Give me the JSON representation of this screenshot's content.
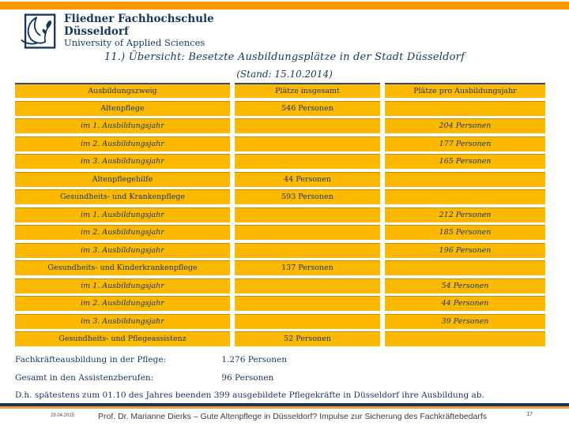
{
  "logo": {
    "line1": "Fliedner Fachhochschule",
    "line2": "Düsseldorf",
    "line3": "University of Applied Sciences"
  },
  "title": "11.) Übersicht: Besetzte Ausbildungsplätze in der Stadt Düsseldorf",
  "subtitle": "(Stand: 15.10.2014)",
  "colors": {
    "top_bar_orange": "#FF9900",
    "table_cell_orange": "#FCB900",
    "brand_navy": "#17365D",
    "footer_rule_orange": "#EFA32A"
  },
  "table": {
    "headers": [
      "Ausbildungszweig",
      "Plätze insgesamt",
      "Plätze pro Ausbildungsjahr"
    ],
    "rows": [
      {
        "zweig": "Altenpflege",
        "insgesamt": "546 Personen",
        "pro_jahr": "",
        "sub": false
      },
      {
        "zweig": "im 1. Ausbildungsjahr",
        "insgesamt": "",
        "pro_jahr": "204 Personen",
        "sub": true
      },
      {
        "zweig": "im 2. Ausbildungsjahr",
        "insgesamt": "",
        "pro_jahr": "177 Personen",
        "sub": true
      },
      {
        "zweig": "im 3. Ausbildungsjahr",
        "insgesamt": "",
        "pro_jahr": "165 Personen",
        "sub": true
      },
      {
        "zweig": "Altenpflegehilfe",
        "insgesamt": "44 Personen",
        "pro_jahr": "",
        "sub": false
      },
      {
        "zweig": "Gesundheits- und Krankenpflege",
        "insgesamt": "593 Personen",
        "pro_jahr": "",
        "sub": false
      },
      {
        "zweig": "im 1. Ausbildungsjahr",
        "insgesamt": "",
        "pro_jahr": "212 Personen",
        "sub": true
      },
      {
        "zweig": "im 2. Ausbildungsjahr",
        "insgesamt": "",
        "pro_jahr": "185 Personen",
        "sub": true
      },
      {
        "zweig": "im 3. Ausbildungsjahr",
        "insgesamt": "",
        "pro_jahr": "196 Personen",
        "sub": true
      },
      {
        "zweig": "Gesundheits- und Kinderkrankenpflege",
        "insgesamt": "137 Personen",
        "pro_jahr": "",
        "sub": false
      },
      {
        "zweig": "im 1. Ausbildungsjahr",
        "insgesamt": "",
        "pro_jahr": "54 Personen",
        "sub": true
      },
      {
        "zweig": "im 2. Ausbildungsjahr",
        "insgesamt": "",
        "pro_jahr": "44 Personen",
        "sub": true
      },
      {
        "zweig": "im 3. Ausbildungsjahr",
        "insgesamt": "",
        "pro_jahr": "39 Personen",
        "sub": true
      },
      {
        "zweig": "Gesundheits- und Pflegeassistenz",
        "insgesamt": "52 Personen",
        "pro_jahr": "",
        "sub": false
      }
    ]
  },
  "summary": [
    {
      "label": "Fachkräfteausbildung in der Pflege:",
      "value": "1.276 Personen"
    },
    {
      "label": "Gesamt in den Assistenzberufen:",
      "value": "96 Personen"
    }
  ],
  "note": "D.h. spätestens zum 01.10 des Jahres beenden 399 ausgebildete Pflegekräfte in Düsseldorf ihre Ausbildung ab.",
  "footer": {
    "date": "29.04.2015",
    "text": "Prof. Dr. Marianne Dierks – Gute Altenpflege in Düsseldorf? Impulse zur Sicherung des Fachkräftebedarfs",
    "page": "17"
  }
}
